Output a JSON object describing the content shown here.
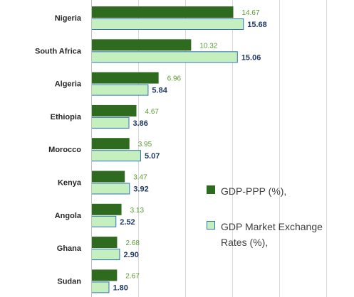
{
  "colors": {
    "ppp_fill": "#2e6b1e",
    "ppp_label": "#5a9b2e",
    "mer_fill": "#c6efc0",
    "mer_border": "#2e75b6",
    "mer_label": "#1f3864",
    "grid": "#d9d9d9",
    "category": "#262626"
  },
  "chart_data": {
    "type": "bar",
    "orientation": "horizontal",
    "categories": [
      "Nigeria",
      "South Africa",
      "Algeria",
      "Ethiopia",
      "Morocco",
      "Kenya",
      "Angola",
      "Ghana",
      "Sudan"
    ],
    "series": [
      {
        "name": "GDP-PPP  (%),",
        "values": [
          14.67,
          10.32,
          6.96,
          4.67,
          3.95,
          3.47,
          3.13,
          2.68,
          2.67
        ],
        "labels": [
          "14.67",
          "10.32",
          "6.96",
          "4.67",
          "3.95",
          "3.47",
          "3.13",
          "2.68",
          "2.67"
        ]
      },
      {
        "name": "GDP Market Exchange Rates (%),",
        "values": [
          15.68,
          15.06,
          5.84,
          3.86,
          5.07,
          3.92,
          2.52,
          2.9,
          1.8
        ],
        "labels": [
          "15.68",
          "15.06",
          "5.84",
          "3.86",
          "5.07",
          "3.92",
          "2.52",
          "2.90",
          "1.80"
        ]
      }
    ],
    "grid": true,
    "legend_position": "right"
  },
  "legend": {
    "ppp_label": "GDP-PPP  (%),",
    "mer_label_line1": "GDP Market Exchange",
    "mer_label_line2": "Rates (%),"
  }
}
